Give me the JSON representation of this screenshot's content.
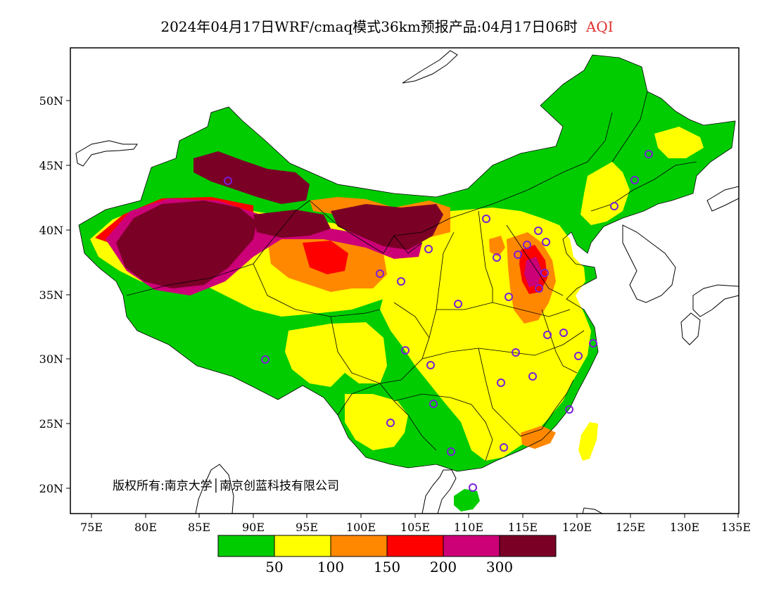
{
  "title": {
    "main": "2024年04月17日WRF/cmaq模式36km预报产品:04月17日06时",
    "variable": "AQI"
  },
  "copyright": "版权所有:南京大学│南京创蓝科技有限公司",
  "axes": {
    "x_ticks": [
      "75E",
      "80E",
      "85E",
      "90E",
      "95E",
      "100E",
      "105E",
      "110E",
      "115E",
      "120E",
      "125E",
      "130E",
      "135E"
    ],
    "y_ticks": [
      "50N",
      "45N",
      "40N",
      "35N",
      "30N",
      "25N",
      "20N"
    ]
  },
  "legend": {
    "colors": [
      "#00cc00",
      "#ffff00",
      "#ff8800",
      "#ff0000",
      "#cc0077",
      "#7a0026"
    ],
    "labels": [
      "50",
      "100",
      "150",
      "200",
      "300"
    ]
  },
  "colors": {
    "good": "#00cc00",
    "moderate": "#ffff00",
    "unhealthy_sensitive": "#ff8800",
    "unhealthy": "#ff0000",
    "very_unhealthy": "#cc0077",
    "hazardous": "#7a0026",
    "station_marker": "#7a1fd6",
    "aqi_label": "#e0302c"
  }
}
